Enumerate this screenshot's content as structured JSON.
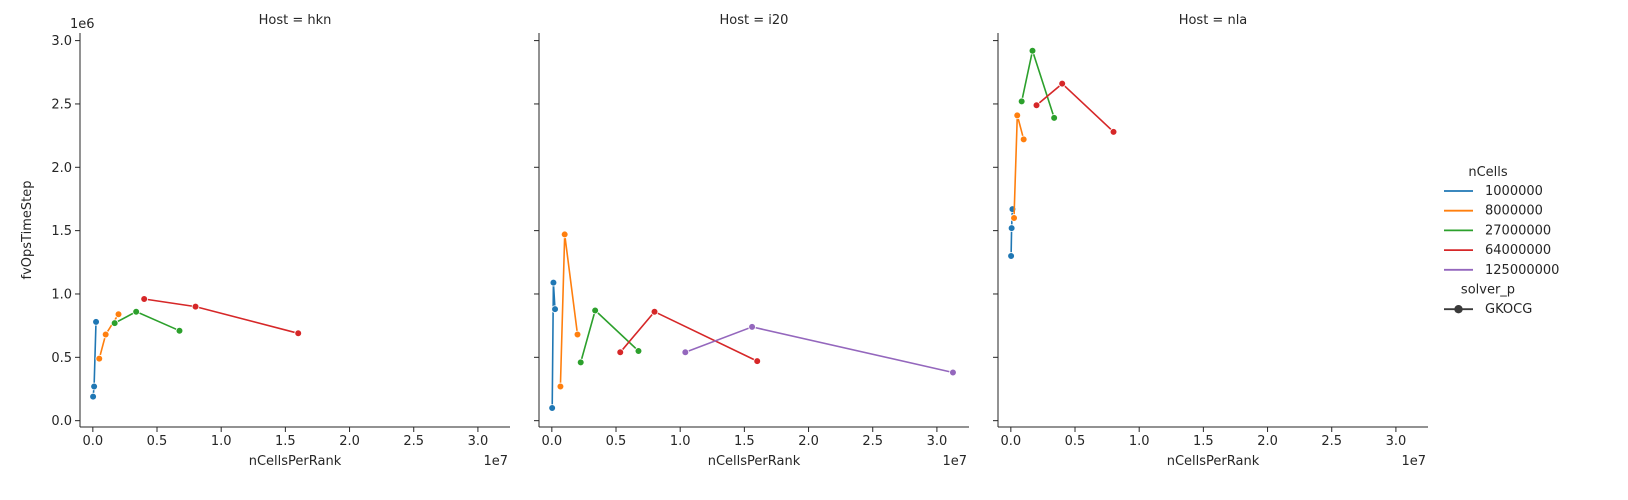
{
  "chart_data": {
    "type": "line",
    "subplot_layout": "1x3 facet grid, shared y-axis",
    "xlabel": "nCellsPerRank",
    "ylabel": "fvOpsTimeStep",
    "x_scale_label": "1e7",
    "y_scale_label": "1e6",
    "xlim": [
      -1000000,
      32500000
    ],
    "ylim": [
      -50000,
      3060000
    ],
    "x_ticks": [
      0,
      5000000,
      10000000,
      15000000,
      20000000,
      25000000,
      30000000
    ],
    "x_tick_labels": [
      "0.0",
      "0.5",
      "1.0",
      "1.5",
      "2.0",
      "2.5",
      "3.0"
    ],
    "y_ticks": [
      0,
      500000,
      1000000,
      1500000,
      2000000,
      2500000,
      3000000
    ],
    "y_tick_labels": [
      "0.0",
      "0.5",
      "1.0",
      "1.5",
      "2.0",
      "2.5",
      "3.0"
    ],
    "grid": false,
    "legend": {
      "placement": "right",
      "hue_title": "nCells",
      "hue_entries": [
        {
          "label": "1000000",
          "color": "#1f77b4"
        },
        {
          "label": "8000000",
          "color": "#ff7f0e"
        },
        {
          "label": "27000000",
          "color": "#2ca02c"
        },
        {
          "label": "64000000",
          "color": "#d62728"
        },
        {
          "label": "125000000",
          "color": "#9467bd"
        }
      ],
      "style_title": "solver_p",
      "style_entries": [
        {
          "label": "GKOCG",
          "color": "#3a3a3a"
        }
      ]
    },
    "panels": [
      {
        "title": "Host = hkn",
        "series": [
          {
            "hue": "1000000",
            "points": [
              [
                20000,
                190000
              ],
              [
                100000,
                270000
              ],
              [
                250000,
                780000
              ]
            ]
          },
          {
            "hue": "8000000",
            "points": [
              [
                500000,
                490000
              ],
              [
                1000000,
                680000
              ],
              [
                2000000,
                840000
              ]
            ]
          },
          {
            "hue": "27000000",
            "points": [
              [
                1700000,
                770000
              ],
              [
                3375000,
                860000
              ],
              [
                6750000,
                710000
              ]
            ]
          },
          {
            "hue": "64000000",
            "points": [
              [
                4000000,
                960000
              ],
              [
                8000000,
                900000
              ],
              [
                16000000,
                690000
              ]
            ]
          }
        ]
      },
      {
        "title": "Host = i20",
        "series": [
          {
            "hue": "1000000",
            "points": [
              [
                25000,
                100000
              ],
              [
                125000,
                1090000
              ],
              [
                250000,
                880000
              ]
            ]
          },
          {
            "hue": "8000000",
            "points": [
              [
                670000,
                270000
              ],
              [
                1000000,
                1470000
              ],
              [
                2000000,
                680000
              ]
            ]
          },
          {
            "hue": "27000000",
            "points": [
              [
                2250000,
                460000
              ],
              [
                3375000,
                870000
              ],
              [
                6750000,
                550000
              ]
            ]
          },
          {
            "hue": "64000000",
            "points": [
              [
                5330000,
                540000
              ],
              [
                8000000,
                860000
              ],
              [
                16000000,
                470000
              ]
            ]
          },
          {
            "hue": "125000000",
            "points": [
              [
                10400000,
                540000
              ],
              [
                15600000,
                740000
              ],
              [
                31250000,
                380000
              ]
            ]
          }
        ]
      },
      {
        "title": "Host = nla",
        "series": [
          {
            "hue": "1000000",
            "points": [
              [
                20000,
                1300000
              ],
              [
                62500,
                1520000
              ],
              [
                125000,
                1670000
              ]
            ]
          },
          {
            "hue": "8000000",
            "points": [
              [
                250000,
                1600000
              ],
              [
                500000,
                2410000
              ],
              [
                1000000,
                2220000
              ]
            ]
          },
          {
            "hue": "27000000",
            "points": [
              [
                843750,
                2520000
              ],
              [
                1687500,
                2920000
              ],
              [
                3375000,
                2390000
              ]
            ]
          },
          {
            "hue": "64000000",
            "points": [
              [
                2000000,
                2490000
              ],
              [
                4000000,
                2660000
              ],
              [
                8000000,
                2280000
              ]
            ]
          }
        ]
      }
    ]
  }
}
